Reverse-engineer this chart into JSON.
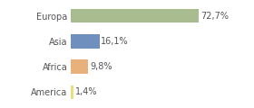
{
  "categories": [
    "Europa",
    "Asia",
    "Africa",
    "America"
  ],
  "values": [
    72.7,
    16.1,
    9.8,
    1.4
  ],
  "labels": [
    "72,7%",
    "16,1%",
    "9,8%",
    "1,4%"
  ],
  "bar_colors": [
    "#a8bc8f",
    "#6f8fbf",
    "#e8b07a",
    "#e8e07a"
  ],
  "background_color": "#ffffff",
  "xlim": [
    0,
    100
  ],
  "bar_height": 0.55,
  "label_fontsize": 7.0,
  "category_fontsize": 7.0,
  "figsize": [
    2.8,
    1.2
  ],
  "dpi": 100
}
